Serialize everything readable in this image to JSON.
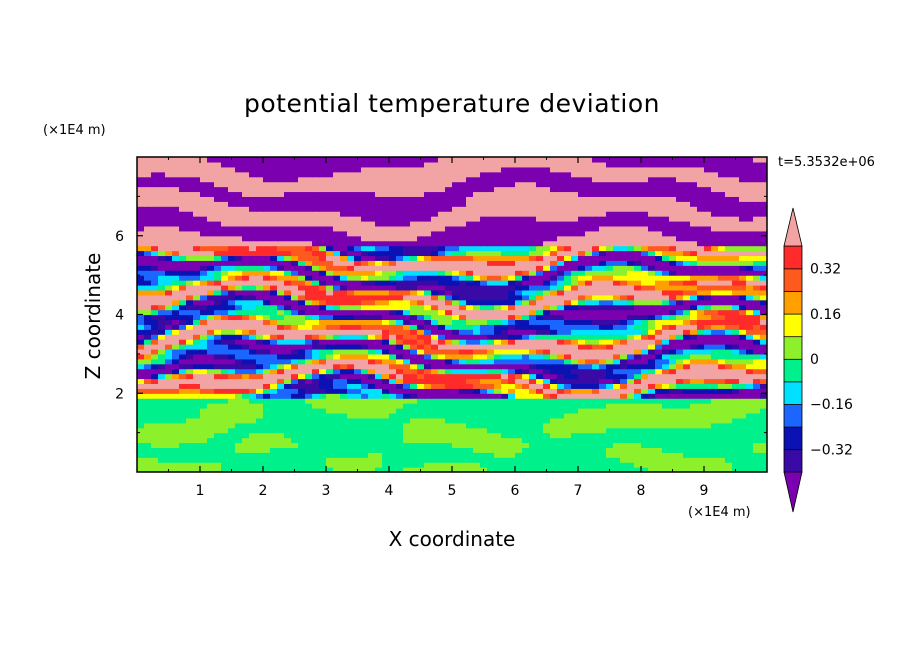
{
  "chart_data": {
    "type": "heatmap",
    "title": "potential temperature deviation",
    "xlabel": "X coordinate",
    "ylabel": "Z coordinate",
    "x_unit": "(×1E4 m)",
    "y_unit": "(×1E4 m)",
    "time_label": "t=5.3532e+06",
    "xlim": [
      0,
      10
    ],
    "ylim": [
      0,
      8
    ],
    "x_ticks": [
      1,
      2,
      3,
      4,
      5,
      6,
      7,
      8,
      9
    ],
    "y_ticks": [
      2,
      4,
      6
    ],
    "colorbar": {
      "levels": [
        -0.4,
        -0.32,
        -0.24,
        -0.16,
        -0.08,
        0,
        0.08,
        0.16,
        0.24,
        0.32,
        0.4
      ],
      "tick_values": [
        0.32,
        0.16,
        0,
        -0.16,
        -0.32
      ],
      "tick_labels": [
        "0.32",
        "0.16",
        "0",
        "−0.16",
        "−0.32"
      ],
      "colors_low_to_high": [
        "#7a00b0",
        "#3a0aa6",
        "#0a12b4",
        "#1a66ff",
        "#00e0ff",
        "#00f08c",
        "#8cf02a",
        "#ffff00",
        "#ffa000",
        "#ff5a1e",
        "#ff2a2a",
        "#f2a4a4"
      ],
      "extends": "both"
    },
    "description_regions": [
      {
        "z_range": [
          0,
          1.9
        ],
        "values": [
          0,
          0.08
        ]
      },
      {
        "z_range": [
          1.9,
          5.8
        ],
        "values": [
          -0.4,
          0.4
        ]
      },
      {
        "z_range": [
          5.8,
          8
        ],
        "values": [
          -0.4,
          0.4
        ]
      }
    ]
  }
}
